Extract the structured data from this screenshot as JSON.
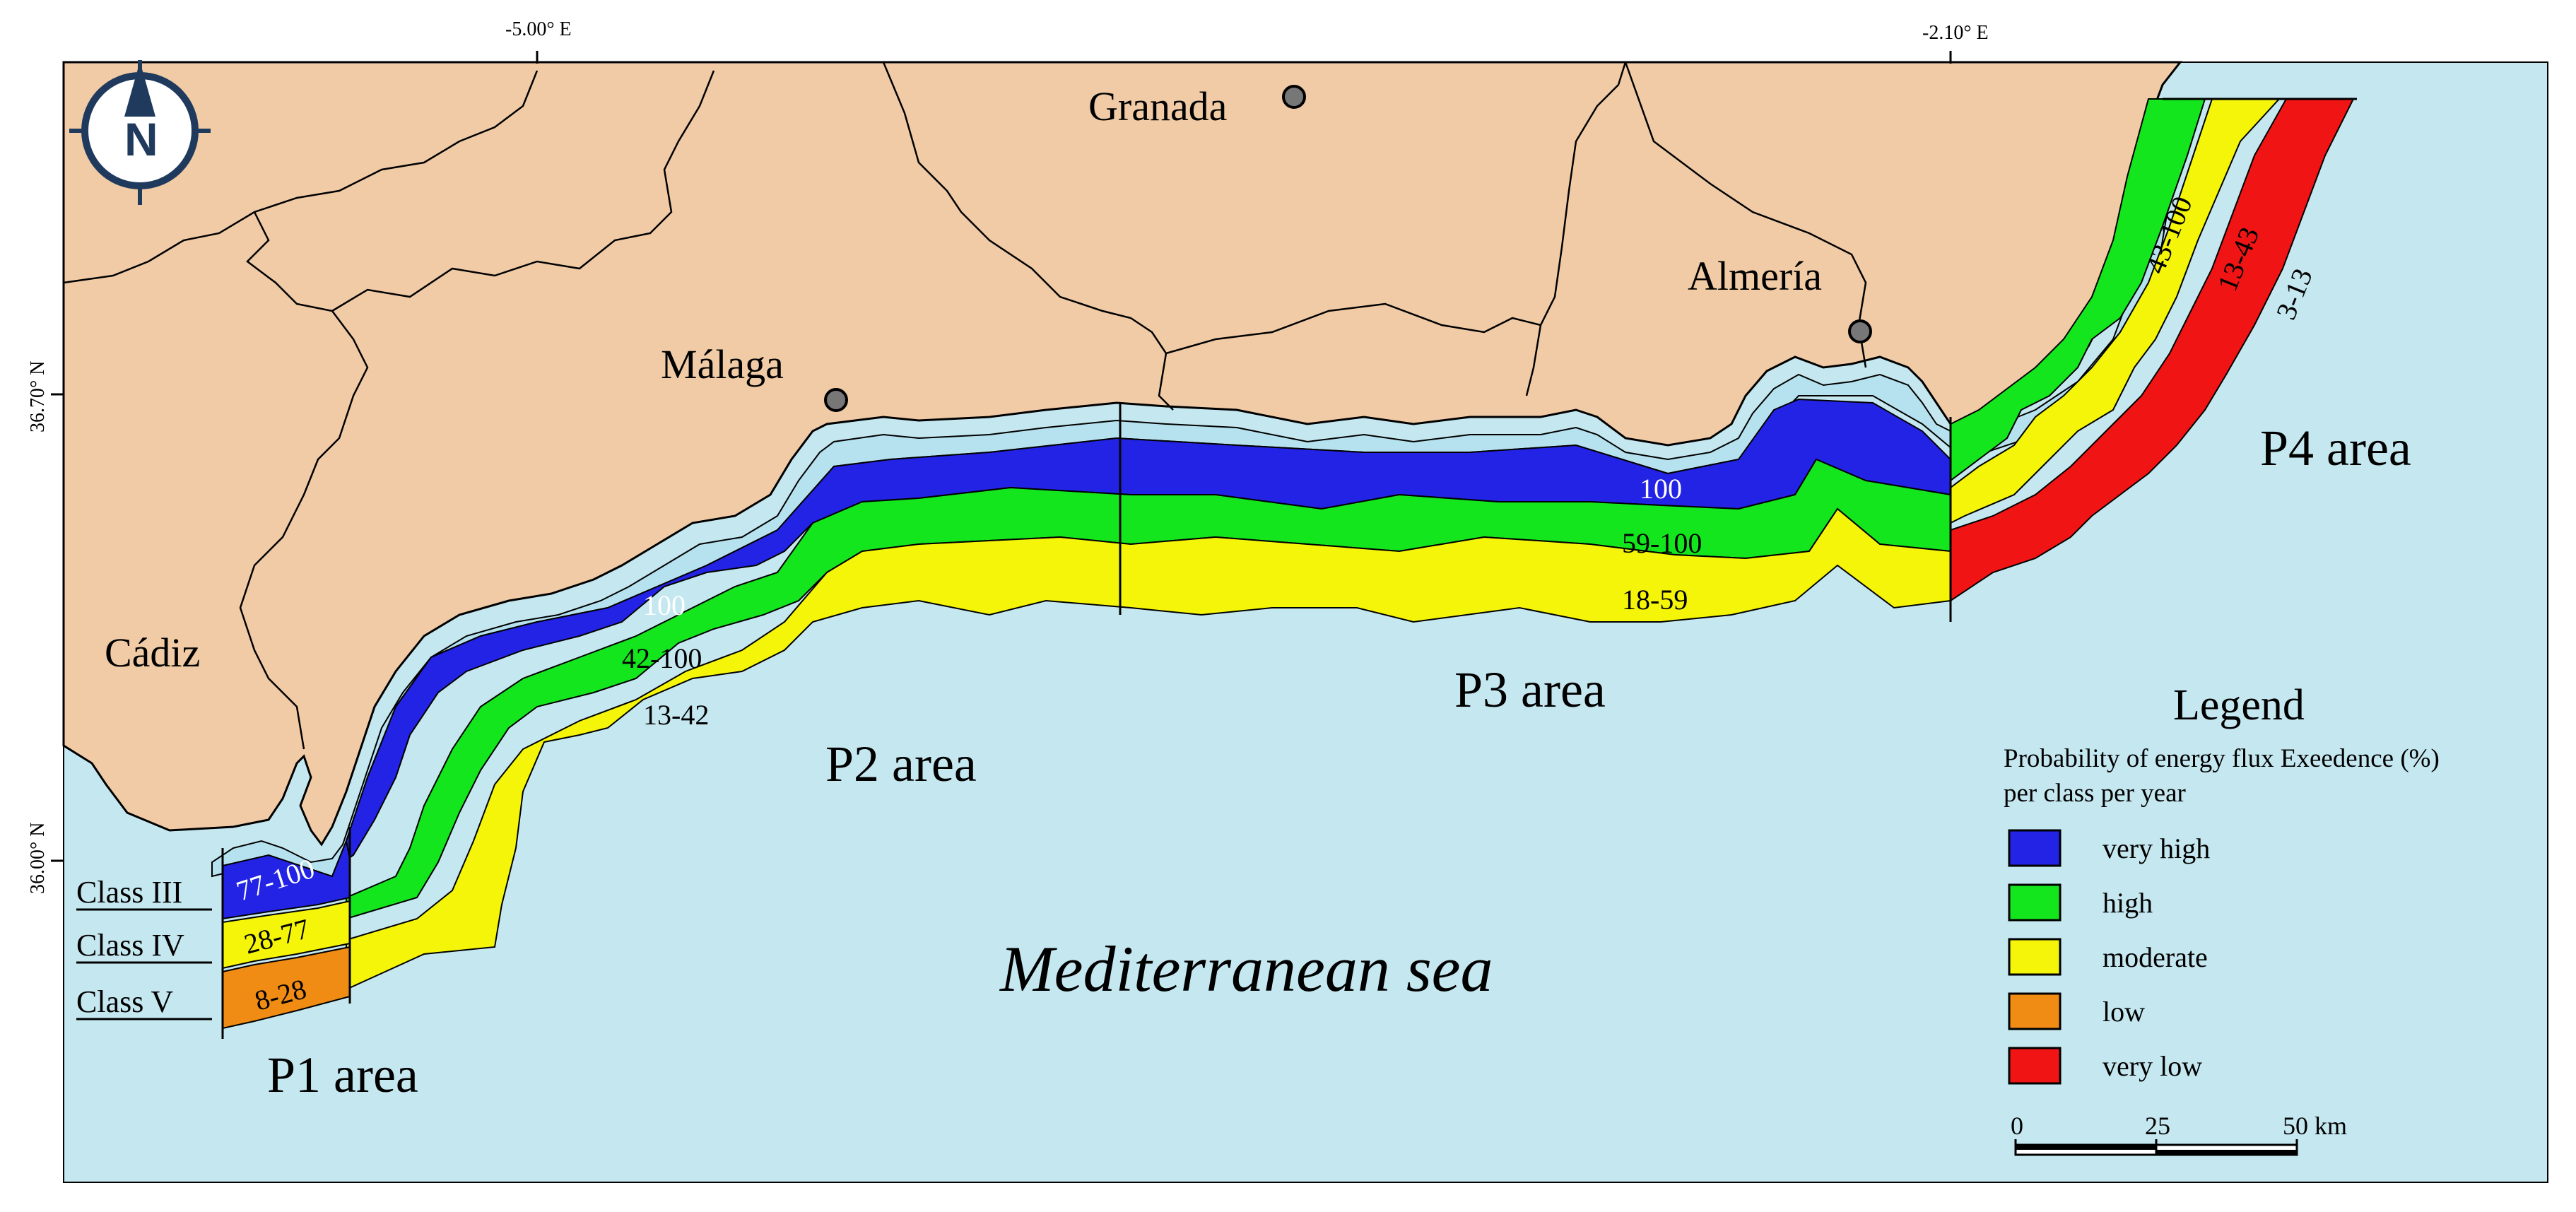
{
  "axes": {
    "top_left": "-5.00° E",
    "top_right": "-2.10° E",
    "left_top": "36.70° N",
    "left_bottom": "36.00° N"
  },
  "cities": {
    "granada": "Granada",
    "malaga": "Málaga",
    "almeria": "Almería",
    "cadiz": "Cádiz"
  },
  "areas": {
    "p1": "P1 area",
    "p2": "P2 area",
    "p3": "P3 area",
    "p4": "P4 area"
  },
  "sea": "Mediterranean sea",
  "classes": {
    "c3": "Class III",
    "c4": "Class IV",
    "c5": "Class V"
  },
  "bands": {
    "p1_very_high": "77-100",
    "p1_moderate": "28-77",
    "p1_low": "8-28",
    "p2_very_high": "100",
    "p2_high": "42-100",
    "p2_moderate": "13-42",
    "p3_very_high": "100",
    "p3_high": "59-100",
    "p3_moderate": "18-59",
    "p4_high": "43-100",
    "p4_moderate": "13-43",
    "p4_very_low": "3-13"
  },
  "legend": {
    "title": "Legend",
    "subtitle1": "Probability of energy flux Exeedence (%)",
    "subtitle2": "per class per year",
    "items": [
      {
        "label": "very high",
        "color": "#2323e6"
      },
      {
        "label": "high",
        "color": "#14e61e"
      },
      {
        "label": "moderate",
        "color": "#f5f50a"
      },
      {
        "label": "low",
        "color": "#f08c14"
      },
      {
        "label": "very low",
        "color": "#f01414"
      }
    ]
  },
  "scale": {
    "zero": "0",
    "mid": "25",
    "end": "50 km"
  },
  "colors": {
    "sea": "#c5e7f0",
    "land": "#f0cba6",
    "coast_buffer": "#b5e2ee"
  }
}
